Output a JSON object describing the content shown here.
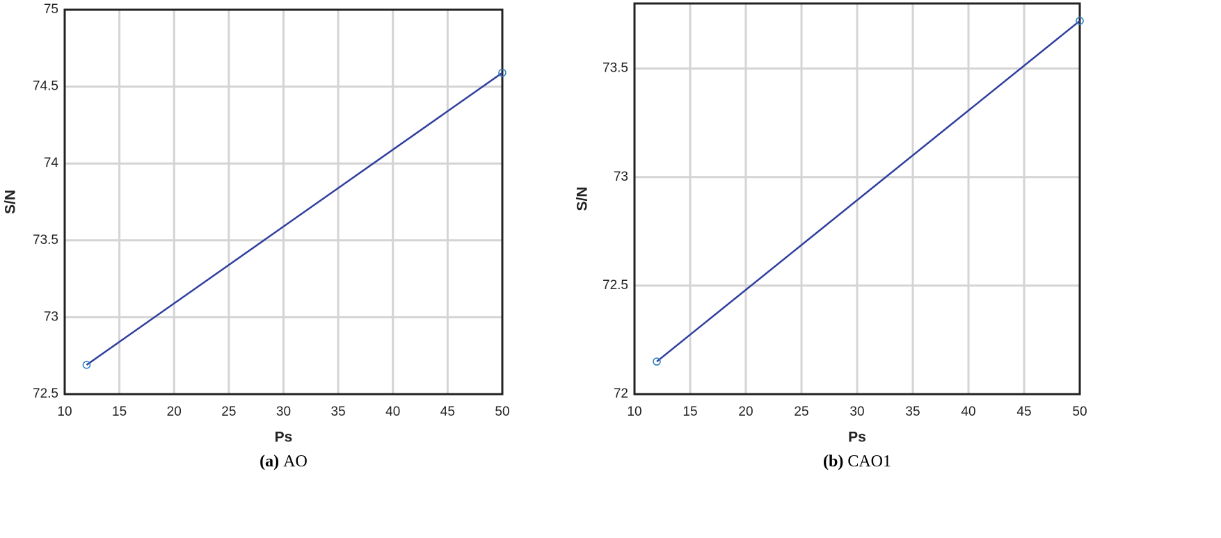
{
  "chart_data": [
    {
      "type": "line",
      "caption_label": "(a)",
      "caption": "AO",
      "xlabel": "Ps",
      "ylabel": "S/N",
      "x": [
        12,
        50
      ],
      "series": [
        {
          "name": "S/N",
          "color": "#2f3f9e",
          "marker_color": "#2b7cc0",
          "values": [
            72.69,
            74.59
          ]
        }
      ],
      "xlim": [
        10,
        50
      ],
      "xticks": [
        10,
        15,
        20,
        25,
        30,
        35,
        40,
        45,
        50
      ],
      "ylim": [
        72.5,
        75
      ],
      "yticks": [
        72.5,
        73,
        73.5,
        74,
        74.5,
        75
      ],
      "grid": true
    },
    {
      "type": "line",
      "caption_label": "(b)",
      "caption": "CAO1",
      "xlabel": "Ps",
      "ylabel": "S/N",
      "x": [
        12,
        50
      ],
      "series": [
        {
          "name": "S/N",
          "color": "#2f3f9e",
          "marker_color": "#2b7cc0",
          "values": [
            72.15,
            73.72
          ]
        }
      ],
      "xlim": [
        10,
        50
      ],
      "xticks": [
        10,
        15,
        20,
        25,
        30,
        35,
        40,
        45,
        50
      ],
      "ylim": [
        72,
        73.8
      ],
      "yticks": [
        72,
        72.5,
        73,
        73.5
      ],
      "grid": true
    }
  ]
}
